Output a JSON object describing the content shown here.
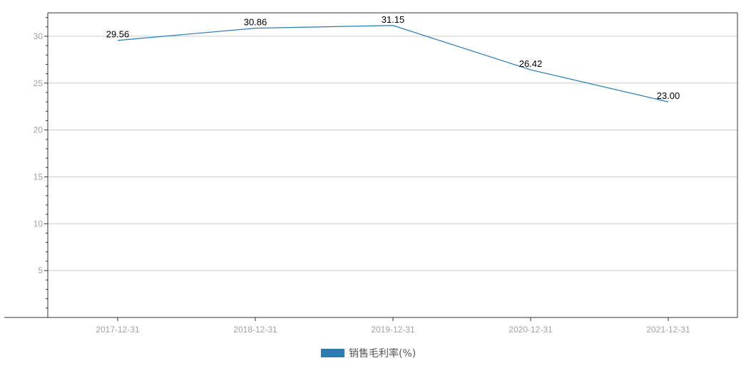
{
  "chart_data": {
    "type": "line",
    "categories": [
      "2017-12-31",
      "2018-12-31",
      "2019-12-31",
      "2020-12-31",
      "2021-12-31"
    ],
    "series": [
      {
        "name": "销售毛利率(%)",
        "values": [
          29.56,
          30.86,
          31.15,
          26.42,
          23.0
        ],
        "labels": [
          "29.56",
          "30.86",
          "31.15",
          "26.42",
          "23.00"
        ],
        "color": "#2b7bb0"
      }
    ],
    "ylim": [
      0,
      32.5
    ],
    "yticks": [
      5,
      10,
      15,
      20,
      25,
      30
    ],
    "ytick_labels": [
      "5",
      "10",
      "15",
      "20",
      "25",
      "30"
    ],
    "grid": true,
    "legend": "bottom-center"
  }
}
